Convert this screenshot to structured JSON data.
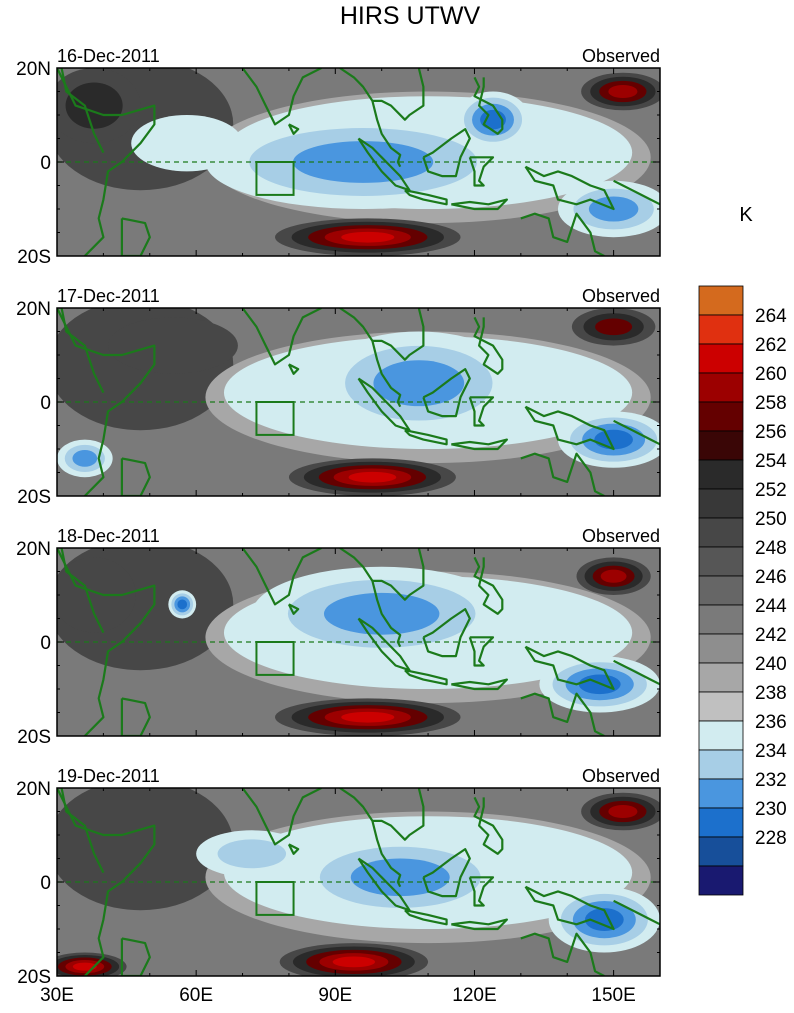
{
  "figure": {
    "title": "HIRS UTWV",
    "units": "K"
  },
  "chart_data": {
    "type": "heatmap",
    "title": "HIRS UTWV",
    "colorbar": {
      "units": "K",
      "levels": [
        228,
        230,
        232,
        234,
        236,
        238,
        240,
        242,
        244,
        246,
        248,
        250,
        252,
        254,
        256,
        258,
        260,
        262,
        264
      ],
      "colors": [
        "#191970",
        "#174f9a",
        "#1c70cc",
        "#4a96df",
        "#a7cee6",
        "#d2ecf0",
        "#c0c0c0",
        "#a7a7a7",
        "#8e8e8e",
        "#7a7a7a",
        "#666666",
        "#565656",
        "#474747",
        "#383838",
        "#2a2a2a",
        "#3a0606",
        "#640000",
        "#9c0000",
        "#cc0000",
        "#e03010",
        "#d46a1e"
      ]
    },
    "x_axis": {
      "range": [
        30,
        160
      ],
      "ticks": [
        30,
        60,
        90,
        120,
        150
      ],
      "tick_labels": [
        "30E",
        "60E",
        "90E",
        "120E",
        "150E"
      ]
    },
    "y_axis": {
      "range": [
        -20,
        20
      ],
      "ticks": [
        20,
        0,
        -20
      ],
      "tick_labels": [
        "20N",
        "0",
        "20S"
      ]
    },
    "panels": [
      {
        "date": "16-Dec-2011",
        "label": "Observed",
        "features": [
          {
            "kind": "moist",
            "lon": 96,
            "lat": 0,
            "rx": 34,
            "ry": 10,
            "value": 232
          },
          {
            "kind": "moist",
            "lon": 124,
            "lat": 9,
            "rx": 8,
            "ry": 6,
            "value": 230
          },
          {
            "kind": "moist",
            "lon": 150,
            "lat": -10,
            "rx": 12,
            "ry": 6,
            "value": 232
          },
          {
            "kind": "moist",
            "lon": 58,
            "lat": 4,
            "rx": 12,
            "ry": 6,
            "value": 236
          },
          {
            "kind": "dry",
            "lon": 97,
            "lat": -16,
            "rx": 20,
            "ry": 4,
            "value": 262
          },
          {
            "kind": "dry",
            "lon": 152,
            "lat": 15,
            "rx": 9,
            "ry": 4,
            "value": 260
          },
          {
            "kind": "dry",
            "lon": 38,
            "lat": 12,
            "rx": 10,
            "ry": 8,
            "value": 254
          }
        ]
      },
      {
        "date": "17-Dec-2011",
        "label": "Observed",
        "features": [
          {
            "kind": "moist",
            "lon": 108,
            "lat": 4,
            "rx": 22,
            "ry": 11,
            "value": 232
          },
          {
            "kind": "moist",
            "lon": 150,
            "lat": -8,
            "rx": 12,
            "ry": 6,
            "value": 230
          },
          {
            "kind": "moist",
            "lon": 36,
            "lat": -12,
            "rx": 6,
            "ry": 4,
            "value": 232
          },
          {
            "kind": "dry",
            "lon": 98,
            "lat": -16,
            "rx": 18,
            "ry": 4,
            "value": 262
          },
          {
            "kind": "dry",
            "lon": 150,
            "lat": 16,
            "rx": 9,
            "ry": 4,
            "value": 258
          },
          {
            "kind": "dry",
            "lon": 55,
            "lat": 12,
            "rx": 14,
            "ry": 6,
            "value": 252
          }
        ]
      },
      {
        "date": "18-Dec-2011",
        "label": "Observed",
        "features": [
          {
            "kind": "moist",
            "lon": 100,
            "lat": 6,
            "rx": 28,
            "ry": 10,
            "value": 232
          },
          {
            "kind": "moist",
            "lon": 147,
            "lat": -9,
            "rx": 13,
            "ry": 6,
            "value": 230
          },
          {
            "kind": "moist",
            "lon": 57,
            "lat": 8,
            "rx": 3,
            "ry": 3,
            "value": 230
          },
          {
            "kind": "dry",
            "lon": 97,
            "lat": -16,
            "rx": 20,
            "ry": 4,
            "value": 262
          },
          {
            "kind": "dry",
            "lon": 150,
            "lat": 14,
            "rx": 8,
            "ry": 4,
            "value": 260
          },
          {
            "kind": "dry",
            "lon": 38,
            "lat": 10,
            "rx": 9,
            "ry": 8,
            "value": 252
          }
        ]
      },
      {
        "date": "19-Dec-2011",
        "label": "Observed",
        "features": [
          {
            "kind": "moist",
            "lon": 104,
            "lat": 1,
            "rx": 24,
            "ry": 9,
            "value": 232
          },
          {
            "kind": "moist",
            "lon": 148,
            "lat": -8,
            "rx": 12,
            "ry": 7,
            "value": 230
          },
          {
            "kind": "moist",
            "lon": 72,
            "lat": 6,
            "rx": 12,
            "ry": 5,
            "value": 234
          },
          {
            "kind": "dry",
            "lon": 94,
            "lat": -17,
            "rx": 16,
            "ry": 4,
            "value": 262
          },
          {
            "kind": "dry",
            "lon": 36,
            "lat": -18,
            "rx": 9,
            "ry": 3,
            "value": 262
          },
          {
            "kind": "dry",
            "lon": 152,
            "lat": 15,
            "rx": 9,
            "ry": 4,
            "value": 260
          }
        ]
      }
    ],
    "overlays": [
      "coastlines",
      "equator-dashed-line",
      "box-indian-ocean"
    ]
  }
}
